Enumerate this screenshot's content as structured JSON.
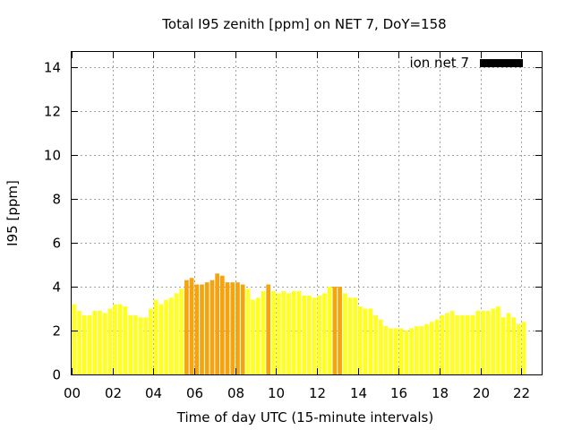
{
  "chart_data": {
    "type": "bar",
    "title": "Total I95 zenith [ppm] on NET 7, DoY=158",
    "xlabel": "Time of day UTC (15-minute intervals)",
    "ylabel": "I95 [ppm]",
    "xlim": [
      0,
      23
    ],
    "ylim": [
      0,
      14.7
    ],
    "xticks": [
      "00",
      "02",
      "04",
      "06",
      "08",
      "10",
      "12",
      "14",
      "16",
      "18",
      "20",
      "22"
    ],
    "yticks": [
      "0",
      "2",
      "4",
      "6",
      "8",
      "10",
      "12",
      "14"
    ],
    "grid": true,
    "legend": {
      "position": "top-right",
      "label": "ion net 7",
      "color": "#000000"
    },
    "colors": {
      "normal": "#ffff22",
      "elevated": "#f5a40f"
    },
    "bar_width_hours": 0.25,
    "series": [
      {
        "values": [
          3.2,
          2.9,
          2.7,
          2.7,
          2.9,
          2.9,
          2.8,
          3.0,
          3.2,
          3.2,
          3.1,
          2.7,
          2.7,
          2.6,
          2.6,
          3.0,
          3.4,
          3.2,
          3.4,
          3.5,
          3.7,
          3.9,
          4.3,
          4.4,
          4.1,
          4.1,
          4.2,
          4.3,
          4.6,
          4.5,
          4.2,
          4.2,
          4.2,
          4.1,
          3.9,
          3.4,
          3.5,
          3.8,
          4.1,
          3.8,
          3.7,
          3.8,
          3.7,
          3.8,
          3.8,
          3.6,
          3.6,
          3.5,
          3.6,
          3.7,
          4.0,
          4.0,
          4.0,
          3.7,
          3.5,
          3.5,
          3.1,
          3.0,
          3.0,
          2.7,
          2.5,
          2.2,
          2.1,
          2.1,
          2.1,
          2.0,
          2.1,
          2.2,
          2.2,
          2.3,
          2.4,
          2.5,
          2.7,
          2.8,
          2.9,
          2.7,
          2.7,
          2.7,
          2.7,
          2.9,
          2.9,
          2.9,
          3.0,
          3.1,
          2.6,
          2.8,
          2.6,
          2.3,
          2.4
        ],
        "elevated": [
          false,
          false,
          false,
          false,
          false,
          false,
          false,
          false,
          false,
          false,
          false,
          false,
          false,
          false,
          false,
          false,
          false,
          false,
          false,
          false,
          false,
          false,
          true,
          true,
          true,
          true,
          true,
          true,
          true,
          true,
          true,
          true,
          true,
          true,
          false,
          false,
          false,
          false,
          true,
          false,
          false,
          false,
          false,
          false,
          false,
          false,
          false,
          false,
          false,
          false,
          false,
          true,
          true,
          false,
          false,
          false,
          false,
          false,
          false,
          false,
          false,
          false,
          false,
          false,
          false,
          false,
          false,
          false,
          false,
          false,
          false,
          false,
          false,
          false,
          false,
          false,
          false,
          false,
          false,
          false,
          false,
          false,
          false,
          false,
          false,
          false,
          false,
          false,
          false
        ]
      }
    ]
  }
}
